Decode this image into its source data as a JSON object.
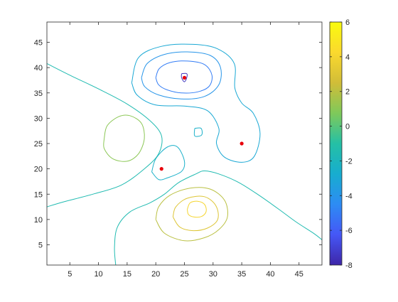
{
  "chart_data": {
    "type": "contour",
    "title": "",
    "xlabel": "",
    "ylabel": "",
    "xlim": [
      1,
      49
    ],
    "ylim": [
      1,
      49
    ],
    "x_ticks": [
      5,
      10,
      15,
      20,
      25,
      30,
      35,
      40,
      45
    ],
    "y_ticks": [
      5,
      10,
      15,
      20,
      25,
      30,
      35,
      40,
      45
    ],
    "grid": false,
    "colorbar": {
      "limits": [
        -8,
        6
      ],
      "ticks": [
        -8,
        -6,
        -4,
        -2,
        0,
        2,
        4,
        6
      ],
      "colormap": "parula",
      "stops": [
        "#3e26a8",
        "#4557f6",
        "#2d8cf4",
        "#17adcf",
        "#25c0a5",
        "#7fc95a",
        "#d1bd38",
        "#fbd92e",
        "#f9fb0e"
      ]
    },
    "contours": [
      {
        "level": -7.5,
        "points": [
          [
            24.5,
            38.8
          ],
          [
            25.4,
            38.8
          ],
          [
            25.4,
            38.0
          ],
          [
            25.0,
            37.2
          ],
          [
            24.5,
            38.0
          ],
          [
            24.5,
            38.8
          ]
        ]
      },
      {
        "level": -5,
        "points": [
          [
            20,
            38
          ],
          [
            20.6,
            39.8
          ],
          [
            22.5,
            41.0
          ],
          [
            25.5,
            41.3
          ],
          [
            28.5,
            40.6
          ],
          [
            29.8,
            38.5
          ],
          [
            29.3,
            36.3
          ],
          [
            27.3,
            35.2
          ],
          [
            24.5,
            35.0
          ],
          [
            22.0,
            35.6
          ],
          [
            20.5,
            36.6
          ],
          [
            20,
            38
          ]
        ]
      },
      {
        "level": -4,
        "points": [
          [
            17.5,
            38
          ],
          [
            18.5,
            40.8
          ],
          [
            21.5,
            42.6
          ],
          [
            25.5,
            43.1
          ],
          [
            29.5,
            42.4
          ],
          [
            31.3,
            40.0
          ],
          [
            31.0,
            36.6
          ],
          [
            28.5,
            34.3
          ],
          [
            24.5,
            33.8
          ],
          [
            20.5,
            34.6
          ],
          [
            18.1,
            36.2
          ],
          [
            17.5,
            38
          ]
        ]
      },
      {
        "level": -3,
        "points": [
          [
            15.8,
            37
          ],
          [
            17.0,
            42.0
          ],
          [
            21.0,
            44.2
          ],
          [
            26.5,
            44.6
          ],
          [
            30.8,
            43.7
          ],
          [
            33.7,
            40.8
          ],
          [
            33.8,
            36.0
          ],
          [
            35.0,
            33.0
          ],
          [
            37.0,
            31.0
          ],
          [
            38.2,
            27.0
          ],
          [
            37.2,
            22.5
          ],
          [
            35.0,
            21.3
          ],
          [
            32.0,
            22.3
          ],
          [
            30.6,
            25.0
          ],
          [
            31.0,
            28.0
          ],
          [
            29.0,
            31.5
          ],
          [
            25.0,
            32.4
          ],
          [
            20.0,
            32.6
          ],
          [
            16.8,
            34.5
          ],
          [
            15.8,
            37
          ]
        ]
      },
      {
        "level": -2.5,
        "points": [
          [
            19.3,
            19.4
          ],
          [
            20.0,
            22.0
          ],
          [
            22.0,
            24.3
          ],
          [
            23.8,
            24.3
          ],
          [
            25.0,
            21.5
          ],
          [
            24.5,
            19.5
          ],
          [
            22.0,
            18.2
          ],
          [
            20.5,
            17.9
          ],
          [
            19.3,
            19.4
          ]
        ]
      },
      {
        "level": -2.5,
        "points": [
          [
            26.8,
            28.0
          ],
          [
            27.9,
            28.0
          ],
          [
            28.0,
            26.7
          ],
          [
            26.8,
            26.5
          ],
          [
            26.8,
            28.0
          ]
        ]
      },
      {
        "level": -1.5,
        "points": [
          [
            1.0,
            40.8
          ],
          [
            5.0,
            38.5
          ],
          [
            10.0,
            35.8
          ],
          [
            15.0,
            32.8
          ],
          [
            19.0,
            29.5
          ],
          [
            21.0,
            26.5
          ],
          [
            20.5,
            23.0
          ],
          [
            18.0,
            20.0
          ],
          [
            14.0,
            16.8
          ],
          [
            9.0,
            15.0
          ],
          [
            4.0,
            13.5
          ],
          [
            1.0,
            12.5
          ]
        ]
      },
      {
        "level": -1.5,
        "points": [
          [
            13.0,
            1.0
          ],
          [
            12.8,
            4.5
          ],
          [
            13.3,
            8.5
          ],
          [
            15.5,
            11.5
          ],
          [
            19.0,
            13.3
          ],
          [
            21.5,
            15.0
          ],
          [
            24.0,
            17.3
          ],
          [
            27.0,
            19.0
          ],
          [
            28.5,
            19.6
          ],
          [
            31.0,
            19.0
          ],
          [
            34.5,
            17.3
          ],
          [
            38.0,
            14.8
          ],
          [
            41.5,
            12.0
          ],
          [
            44.5,
            9.5
          ],
          [
            47.5,
            7.3
          ],
          [
            49.0,
            6.0
          ]
        ]
      },
      {
        "level": 1,
        "points": [
          [
            11.0,
            26.0
          ],
          [
            11.5,
            28.5
          ],
          [
            13.5,
            30.3
          ],
          [
            15.5,
            30.5
          ],
          [
            17.5,
            29.0
          ],
          [
            18.0,
            26.0
          ],
          [
            17.0,
            23.0
          ],
          [
            15.0,
            21.5
          ],
          [
            12.5,
            22.0
          ],
          [
            11.0,
            24.0
          ],
          [
            11.0,
            26.0
          ]
        ]
      },
      {
        "level": 2,
        "points": [
          [
            20.0,
            10.0
          ],
          [
            20.5,
            12.5
          ],
          [
            22.5,
            14.8
          ],
          [
            26.0,
            16.2
          ],
          [
            29.5,
            16.0
          ],
          [
            32.0,
            13.8
          ],
          [
            32.5,
            10.5
          ],
          [
            31.0,
            8.0
          ],
          [
            28.5,
            6.4
          ],
          [
            25.0,
            5.8
          ],
          [
            21.5,
            7.3
          ],
          [
            20.0,
            10.0
          ]
        ]
      },
      {
        "level": 3,
        "points": [
          [
            23.0,
            10.5
          ],
          [
            23.5,
            12.5
          ],
          [
            25.5,
            14.2
          ],
          [
            28.5,
            14.5
          ],
          [
            30.5,
            12.7
          ],
          [
            30.8,
            10.0
          ],
          [
            29.0,
            8.3
          ],
          [
            26.5,
            7.8
          ],
          [
            24.2,
            8.5
          ],
          [
            23.0,
            10.5
          ]
        ]
      },
      {
        "level": 4,
        "points": [
          [
            25.5,
            12.0
          ],
          [
            26.0,
            13.3
          ],
          [
            27.3,
            13.6
          ],
          [
            28.5,
            13.0
          ],
          [
            28.8,
            11.6
          ],
          [
            28.0,
            10.6
          ],
          [
            26.6,
            10.5
          ],
          [
            25.7,
            11.0
          ],
          [
            25.5,
            12.0
          ]
        ]
      }
    ],
    "markers": {
      "color": "#e8000b",
      "points": [
        [
          25,
          38
        ],
        [
          35,
          25
        ],
        [
          21,
          20
        ]
      ]
    }
  }
}
